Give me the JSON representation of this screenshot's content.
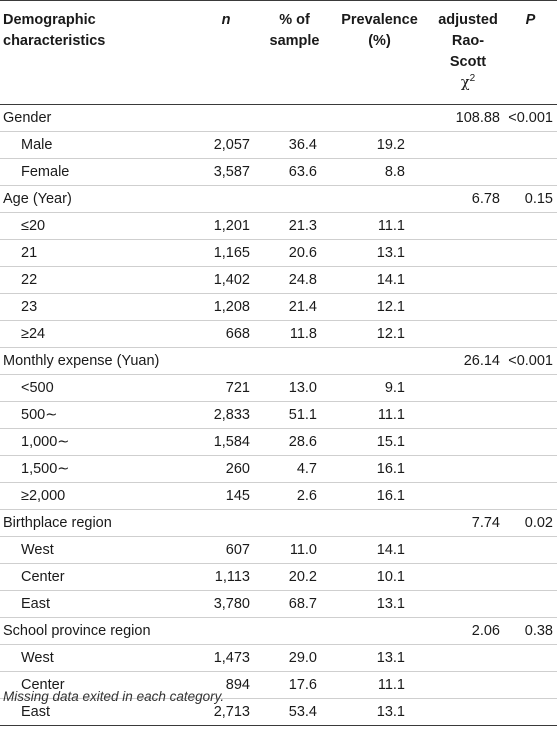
{
  "headers": {
    "demographic": "Demographic characteristics",
    "n": "n",
    "pct_sample": "% of sample",
    "prevalence": "Prevalence (%)",
    "rao_scott_line1": "adjusted",
    "rao_scott_line2": "Rao-Scott",
    "rao_scott_symbol": "χ",
    "rao_scott_sup": "2",
    "p": "P"
  },
  "groups": [
    {
      "label": "Gender",
      "chi2": "108.88",
      "p": "<0.001",
      "rows": [
        {
          "label": "Male",
          "n": "2,057",
          "pct": "36.4",
          "prev": "19.2"
        },
        {
          "label": "Female",
          "n": "3,587",
          "pct": "63.6",
          "prev": "8.8"
        }
      ]
    },
    {
      "label": "Age (Year)",
      "chi2": "6.78",
      "p": "0.15",
      "rows": [
        {
          "label": "≤20",
          "n": "1,201",
          "pct": "21.3",
          "prev": "11.1"
        },
        {
          "label": "21",
          "n": "1,165",
          "pct": "20.6",
          "prev": "13.1"
        },
        {
          "label": "22",
          "n": "1,402",
          "pct": "24.8",
          "prev": "14.1"
        },
        {
          "label": "23",
          "n": "1,208",
          "pct": "21.4",
          "prev": "12.1"
        },
        {
          "label": "≥24",
          "n": "668",
          "pct": "11.8",
          "prev": "12.1"
        }
      ]
    },
    {
      "label": "Monthly expense (Yuan)",
      "chi2": "26.14",
      "p": "<0.001",
      "rows": [
        {
          "label": "<500",
          "n": "721",
          "pct": "13.0",
          "prev": "9.1"
        },
        {
          "label": "500∼",
          "n": "2,833",
          "pct": "51.1",
          "prev": "11.1"
        },
        {
          "label": "1,000∼",
          "n": "1,584",
          "pct": "28.6",
          "prev": "15.1"
        },
        {
          "label": "1,500∼",
          "n": "260",
          "pct": "4.7",
          "prev": "16.1"
        },
        {
          "label": "≥2,000",
          "n": "145",
          "pct": "2.6",
          "prev": "16.1"
        }
      ]
    },
    {
      "label": "Birthplace region",
      "chi2": "7.74",
      "p": "0.02",
      "rows": [
        {
          "label": "West",
          "n": "607",
          "pct": "11.0",
          "prev": "14.1"
        },
        {
          "label": "Center",
          "n": "1,113",
          "pct": "20.2",
          "prev": "10.1"
        },
        {
          "label": "East",
          "n": "3,780",
          "pct": "68.7",
          "prev": "13.1"
        }
      ]
    },
    {
      "label": "School province region",
      "chi2": "2.06",
      "p": "0.38",
      "rows": [
        {
          "label": "West",
          "n": "1,473",
          "pct": "29.0",
          "prev": "13.1"
        },
        {
          "label": "Center",
          "n": "894",
          "pct": "17.6",
          "prev": "11.1"
        },
        {
          "label": "East",
          "n": "2,713",
          "pct": "53.4",
          "prev": "13.1"
        }
      ]
    }
  ],
  "footnote": "Missing data exited in each category."
}
